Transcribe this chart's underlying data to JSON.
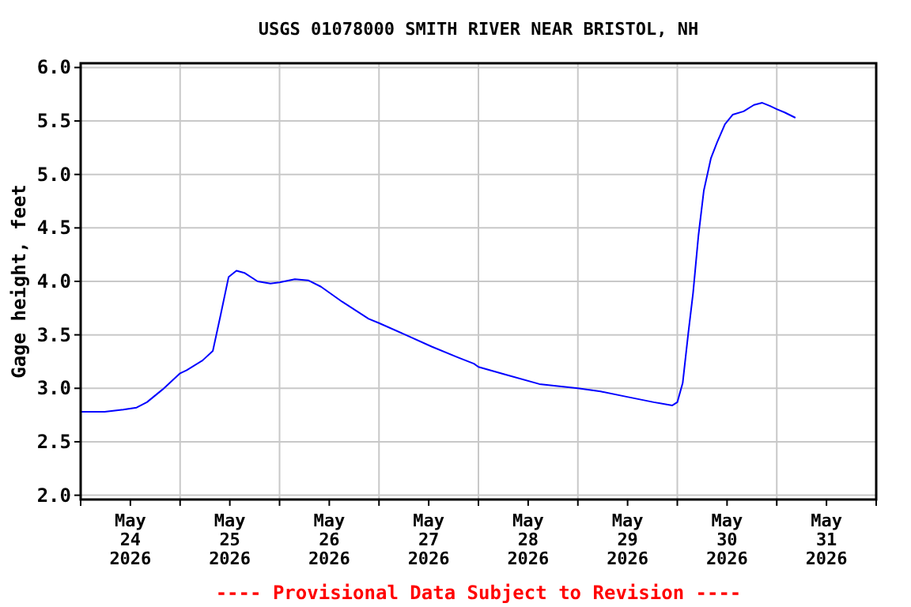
{
  "chart_data": {
    "type": "line",
    "title": "USGS 01078000 SMITH RIVER NEAR BRISTOL, NH",
    "ylabel": "Gage height, feet",
    "annotations": [
      "---- Provisional Data Subject to Revision ----"
    ],
    "xlim": [
      "2026-05-24T00:00",
      "2026-06-01T00:00"
    ],
    "xticks": [
      {
        "value": "2026-05-24T00:00",
        "label": null
      },
      {
        "value": "2026-05-24T12:00",
        "label": "May\n24\n2026"
      },
      {
        "value": "2026-05-25T00:00",
        "label": null
      },
      {
        "value": "2026-05-25T12:00",
        "label": "May\n25\n2026"
      },
      {
        "value": "2026-05-26T00:00",
        "label": null
      },
      {
        "value": "2026-05-26T12:00",
        "label": "May\n26\n2026"
      },
      {
        "value": "2026-05-27T00:00",
        "label": null
      },
      {
        "value": "2026-05-27T12:00",
        "label": "May\n27\n2026"
      },
      {
        "value": "2026-05-28T00:00",
        "label": null
      },
      {
        "value": "2026-05-28T12:00",
        "label": "May\n28\n2026"
      },
      {
        "value": "2026-05-29T00:00",
        "label": null
      },
      {
        "value": "2026-05-29T12:00",
        "label": "May\n29\n2026"
      },
      {
        "value": "2026-05-30T00:00",
        "label": null
      },
      {
        "value": "2026-05-30T12:00",
        "label": "May\n30\n2026"
      },
      {
        "value": "2026-05-31T00:00",
        "label": null
      },
      {
        "value": "2026-05-31T12:00",
        "label": "May\n31\n2026"
      },
      {
        "value": "2026-06-01T00:00",
        "label": null
      }
    ],
    "ylim": [
      1.96,
      6.04
    ],
    "yticks": [
      {
        "value": 2,
        "label": "2.0"
      },
      {
        "value": 2.5,
        "label": "2.5"
      },
      {
        "value": 3,
        "label": "3.0"
      },
      {
        "value": 3.5,
        "label": "3.5"
      },
      {
        "value": 4,
        "label": "4.0"
      },
      {
        "value": 4.5,
        "label": "4.5"
      },
      {
        "value": 5,
        "label": "5.0"
      },
      {
        "value": 5.5,
        "label": "5.5"
      },
      {
        "value": 6,
        "label": "6.0"
      }
    ],
    "grid": true,
    "marker": "none",
    "line_style": "solid",
    "x": [
      "2026-05-24T00:00",
      "2026-05-24T05:48",
      "2026-05-24T10:18",
      "2026-05-24T13:30",
      "2026-05-24T16:00",
      "2026-05-24T19:48",
      "2026-05-25T00:00",
      "2026-05-25T01:36",
      "2026-05-25T05:24",
      "2026-05-25T07:54",
      "2026-05-25T09:48",
      "2026-05-25T11:42",
      "2026-05-25T13:36",
      "2026-05-25T15:30",
      "2026-05-25T18:42",
      "2026-05-25T21:48",
      "2026-05-26T00:00",
      "2026-05-26T03:42",
      "2026-05-26T06:54",
      "2026-05-26T10:00",
      "2026-05-26T15:06",
      "2026-05-26T21:30",
      "2026-05-27T00:00",
      "2026-05-27T06:24",
      "2026-05-27T12:42",
      "2026-05-27T19:00",
      "2026-05-27T22:54",
      "2026-05-28T00:00",
      "2026-05-28T06:24",
      "2026-05-28T14:42",
      "2026-05-29T00:00",
      "2026-05-29T05:30",
      "2026-05-29T11:54",
      "2026-05-29T18:18",
      "2026-05-29T22:48",
      "2026-05-30T00:00",
      "2026-05-30T01:18",
      "2026-05-30T02:36",
      "2026-05-30T03:48",
      "2026-05-30T05:06",
      "2026-05-30T06:24",
      "2026-05-30T08:06",
      "2026-05-30T09:36",
      "2026-05-30T11:30",
      "2026-05-30T13:24",
      "2026-05-30T16:00",
      "2026-05-30T18:30",
      "2026-05-30T20:30",
      "2026-05-30T22:24",
      "2026-05-31T00:00",
      "2026-05-31T01:54",
      "2026-05-31T04:30"
    ],
    "series": [
      {
        "color": "#0000ff",
        "values": [
          2.78,
          2.78,
          2.8,
          2.82,
          2.87,
          2.99,
          3.14,
          3.17,
          3.26,
          3.35,
          3.69,
          4.04,
          4.1,
          4.08,
          4.0,
          3.98,
          3.99,
          4.02,
          4.01,
          3.95,
          3.81,
          3.65,
          3.61,
          3.5,
          3.39,
          3.29,
          3.23,
          3.2,
          3.13,
          3.04,
          3.0,
          2.97,
          2.92,
          2.87,
          2.84,
          2.87,
          3.05,
          3.5,
          3.89,
          4.43,
          4.85,
          5.15,
          5.3,
          5.47,
          5.56,
          5.59,
          5.65,
          5.67,
          5.64,
          5.61,
          5.58,
          5.53
        ]
      }
    ]
  }
}
